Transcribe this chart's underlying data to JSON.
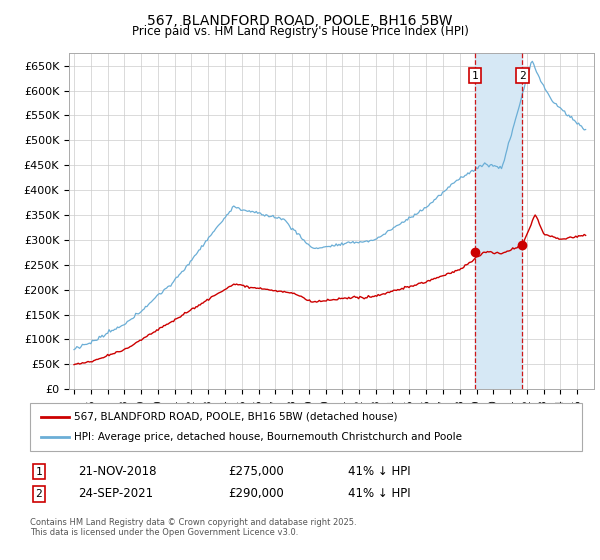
{
  "title": "567, BLANDFORD ROAD, POOLE, BH16 5BW",
  "subtitle": "Price paid vs. HM Land Registry's House Price Index (HPI)",
  "ylim": [
    0,
    675000
  ],
  "yticks": [
    0,
    50000,
    100000,
    150000,
    200000,
    250000,
    300000,
    350000,
    400000,
    450000,
    500000,
    550000,
    600000,
    650000
  ],
  "ytick_labels": [
    "£0",
    "£50K",
    "£100K",
    "£150K",
    "£200K",
    "£250K",
    "£300K",
    "£350K",
    "£400K",
    "£450K",
    "£500K",
    "£550K",
    "£600K",
    "£650K"
  ],
  "xlim_left": 1994.7,
  "xlim_right": 2026.0,
  "sale1_date": "21-NOV-2018",
  "sale1_year": 2018.9,
  "sale1_price": 275000,
  "sale1_price_str": "£275,000",
  "sale1_label": "41% ↓ HPI",
  "sale2_date": "24-SEP-2021",
  "sale2_year": 2021.73,
  "sale2_price": 290000,
  "sale2_price_str": "£290,000",
  "sale2_label": "41% ↓ HPI",
  "legend_line1": "567, BLANDFORD ROAD, POOLE, BH16 5BW (detached house)",
  "legend_line2": "HPI: Average price, detached house, Bournemouth Christchurch and Poole",
  "footnote": "Contains HM Land Registry data © Crown copyright and database right 2025.\nThis data is licensed under the Open Government Licence v3.0.",
  "hpi_color": "#6baed6",
  "price_color": "#cc0000",
  "grid_color": "#cccccc",
  "background_color": "#ffffff",
  "sale_marker_color": "#cc0000",
  "vline_color": "#cc0000",
  "span_color": "#d6e8f5"
}
